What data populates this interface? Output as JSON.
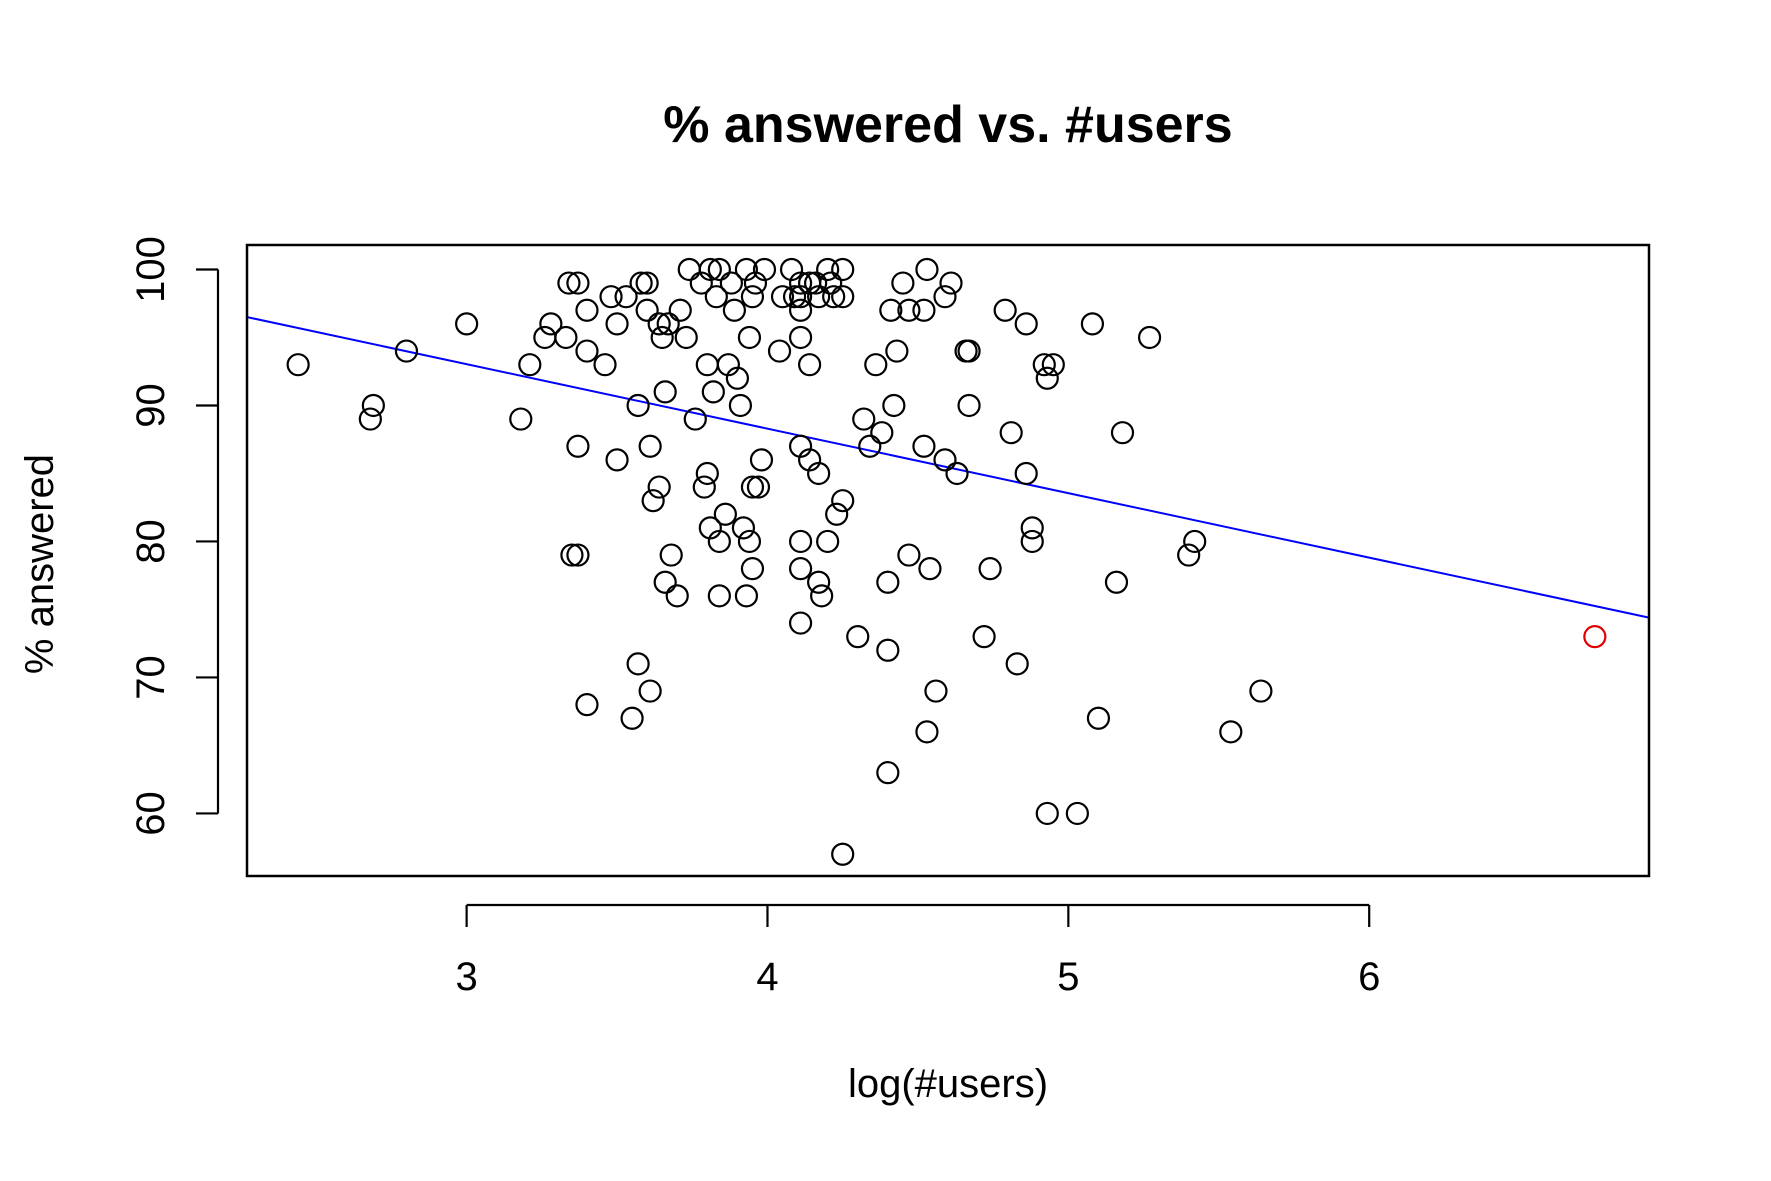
{
  "chart_data": {
    "type": "scatter",
    "title": "% answered vs. #users",
    "xlabel": "log(#users)",
    "ylabel": "% answered",
    "xlim": [
      2.27,
      6.93
    ],
    "ylim": [
      55.4,
      101.8
    ],
    "xticks": [
      3,
      4,
      5,
      6
    ],
    "yticks": [
      60,
      70,
      80,
      90,
      100
    ],
    "grid": false,
    "legend": "none",
    "point_color": "#000000",
    "highlight_color": "#e00000",
    "line_color": "#0000ff",
    "regression_line": {
      "x": [
        2.27,
        6.93
      ],
      "y": [
        96.5,
        74.4
      ]
    },
    "highlight_points": [
      {
        "x": 6.75,
        "y": 73
      }
    ],
    "points": [
      {
        "x": 2.44,
        "y": 93
      },
      {
        "x": 2.68,
        "y": 89
      },
      {
        "x": 2.69,
        "y": 90
      },
      {
        "x": 2.8,
        "y": 94
      },
      {
        "x": 3.0,
        "y": 96
      },
      {
        "x": 3.18,
        "y": 89
      },
      {
        "x": 3.21,
        "y": 93
      },
      {
        "x": 3.26,
        "y": 95
      },
      {
        "x": 3.28,
        "y": 96
      },
      {
        "x": 3.33,
        "y": 95
      },
      {
        "x": 3.34,
        "y": 99
      },
      {
        "x": 3.37,
        "y": 99
      },
      {
        "x": 3.35,
        "y": 79
      },
      {
        "x": 3.37,
        "y": 79
      },
      {
        "x": 3.37,
        "y": 87
      },
      {
        "x": 3.4,
        "y": 97
      },
      {
        "x": 3.4,
        "y": 94
      },
      {
        "x": 3.4,
        "y": 68
      },
      {
        "x": 3.46,
        "y": 93
      },
      {
        "x": 3.48,
        "y": 98
      },
      {
        "x": 3.5,
        "y": 96
      },
      {
        "x": 3.5,
        "y": 86
      },
      {
        "x": 3.53,
        "y": 98
      },
      {
        "x": 3.55,
        "y": 67
      },
      {
        "x": 3.57,
        "y": 90
      },
      {
        "x": 3.57,
        "y": 71
      },
      {
        "x": 3.58,
        "y": 99
      },
      {
        "x": 3.6,
        "y": 99
      },
      {
        "x": 3.6,
        "y": 97
      },
      {
        "x": 3.61,
        "y": 87
      },
      {
        "x": 3.61,
        "y": 69
      },
      {
        "x": 3.62,
        "y": 83
      },
      {
        "x": 3.64,
        "y": 96
      },
      {
        "x": 3.64,
        "y": 84
      },
      {
        "x": 3.65,
        "y": 95
      },
      {
        "x": 3.66,
        "y": 91
      },
      {
        "x": 3.66,
        "y": 77
      },
      {
        "x": 3.67,
        "y": 96
      },
      {
        "x": 3.68,
        "y": 79
      },
      {
        "x": 3.7,
        "y": 76
      },
      {
        "x": 3.71,
        "y": 97
      },
      {
        "x": 3.73,
        "y": 95
      },
      {
        "x": 3.74,
        "y": 100
      },
      {
        "x": 3.76,
        "y": 89
      },
      {
        "x": 3.78,
        "y": 99
      },
      {
        "x": 3.79,
        "y": 84
      },
      {
        "x": 3.8,
        "y": 93
      },
      {
        "x": 3.8,
        "y": 85
      },
      {
        "x": 3.81,
        "y": 100
      },
      {
        "x": 3.81,
        "y": 81
      },
      {
        "x": 3.82,
        "y": 91
      },
      {
        "x": 3.83,
        "y": 98
      },
      {
        "x": 3.84,
        "y": 100
      },
      {
        "x": 3.84,
        "y": 80
      },
      {
        "x": 3.84,
        "y": 76
      },
      {
        "x": 3.86,
        "y": 82
      },
      {
        "x": 3.87,
        "y": 93
      },
      {
        "x": 3.88,
        "y": 99
      },
      {
        "x": 3.89,
        "y": 97
      },
      {
        "x": 3.9,
        "y": 92
      },
      {
        "x": 3.91,
        "y": 90
      },
      {
        "x": 3.92,
        "y": 81
      },
      {
        "x": 3.93,
        "y": 100
      },
      {
        "x": 3.93,
        "y": 76
      },
      {
        "x": 3.94,
        "y": 95
      },
      {
        "x": 3.94,
        "y": 80
      },
      {
        "x": 3.95,
        "y": 98
      },
      {
        "x": 3.95,
        "y": 84
      },
      {
        "x": 3.95,
        "y": 78
      },
      {
        "x": 3.96,
        "y": 99
      },
      {
        "x": 3.97,
        "y": 84
      },
      {
        "x": 3.98,
        "y": 86
      },
      {
        "x": 3.99,
        "y": 100
      },
      {
        "x": 4.04,
        "y": 94
      },
      {
        "x": 4.05,
        "y": 98
      },
      {
        "x": 4.08,
        "y": 100
      },
      {
        "x": 4.09,
        "y": 98
      },
      {
        "x": 4.11,
        "y": 99
      },
      {
        "x": 4.11,
        "y": 98
      },
      {
        "x": 4.11,
        "y": 97
      },
      {
        "x": 4.11,
        "y": 95
      },
      {
        "x": 4.11,
        "y": 87
      },
      {
        "x": 4.11,
        "y": 80
      },
      {
        "x": 4.11,
        "y": 78
      },
      {
        "x": 4.11,
        "y": 74
      },
      {
        "x": 4.14,
        "y": 99
      },
      {
        "x": 4.14,
        "y": 93
      },
      {
        "x": 4.14,
        "y": 86
      },
      {
        "x": 4.16,
        "y": 99
      },
      {
        "x": 4.17,
        "y": 98
      },
      {
        "x": 4.17,
        "y": 85
      },
      {
        "x": 4.17,
        "y": 77
      },
      {
        "x": 4.18,
        "y": 76
      },
      {
        "x": 4.2,
        "y": 100
      },
      {
        "x": 4.21,
        "y": 99
      },
      {
        "x": 4.2,
        "y": 80
      },
      {
        "x": 4.22,
        "y": 98
      },
      {
        "x": 4.23,
        "y": 82
      },
      {
        "x": 4.25,
        "y": 100
      },
      {
        "x": 4.25,
        "y": 98
      },
      {
        "x": 4.25,
        "y": 83
      },
      {
        "x": 4.25,
        "y": 57
      },
      {
        "x": 4.3,
        "y": 73
      },
      {
        "x": 4.32,
        "y": 89
      },
      {
        "x": 4.34,
        "y": 87
      },
      {
        "x": 4.36,
        "y": 93
      },
      {
        "x": 4.38,
        "y": 88
      },
      {
        "x": 4.4,
        "y": 77
      },
      {
        "x": 4.4,
        "y": 72
      },
      {
        "x": 4.4,
        "y": 63
      },
      {
        "x": 4.41,
        "y": 97
      },
      {
        "x": 4.42,
        "y": 90
      },
      {
        "x": 4.43,
        "y": 94
      },
      {
        "x": 4.45,
        "y": 99
      },
      {
        "x": 4.47,
        "y": 97
      },
      {
        "x": 4.47,
        "y": 79
      },
      {
        "x": 4.52,
        "y": 97
      },
      {
        "x": 4.52,
        "y": 87
      },
      {
        "x": 4.53,
        "y": 100
      },
      {
        "x": 4.53,
        "y": 66
      },
      {
        "x": 4.54,
        "y": 78
      },
      {
        "x": 4.56,
        "y": 69
      },
      {
        "x": 4.59,
        "y": 98
      },
      {
        "x": 4.59,
        "y": 86
      },
      {
        "x": 4.61,
        "y": 99
      },
      {
        "x": 4.63,
        "y": 85
      },
      {
        "x": 4.66,
        "y": 94
      },
      {
        "x": 4.67,
        "y": 94
      },
      {
        "x": 4.67,
        "y": 90
      },
      {
        "x": 4.72,
        "y": 73
      },
      {
        "x": 4.74,
        "y": 78
      },
      {
        "x": 4.79,
        "y": 97
      },
      {
        "x": 4.81,
        "y": 88
      },
      {
        "x": 4.83,
        "y": 71
      },
      {
        "x": 4.86,
        "y": 96
      },
      {
        "x": 4.86,
        "y": 85
      },
      {
        "x": 4.88,
        "y": 81
      },
      {
        "x": 4.88,
        "y": 80
      },
      {
        "x": 4.92,
        "y": 93
      },
      {
        "x": 4.93,
        "y": 92
      },
      {
        "x": 4.93,
        "y": 60
      },
      {
        "x": 4.95,
        "y": 93
      },
      {
        "x": 5.03,
        "y": 60
      },
      {
        "x": 5.08,
        "y": 96
      },
      {
        "x": 5.1,
        "y": 67
      },
      {
        "x": 5.16,
        "y": 77
      },
      {
        "x": 5.18,
        "y": 88
      },
      {
        "x": 5.27,
        "y": 95
      },
      {
        "x": 5.4,
        "y": 79
      },
      {
        "x": 5.42,
        "y": 80
      },
      {
        "x": 5.54,
        "y": 66
      },
      {
        "x": 5.64,
        "y": 69
      }
    ]
  }
}
